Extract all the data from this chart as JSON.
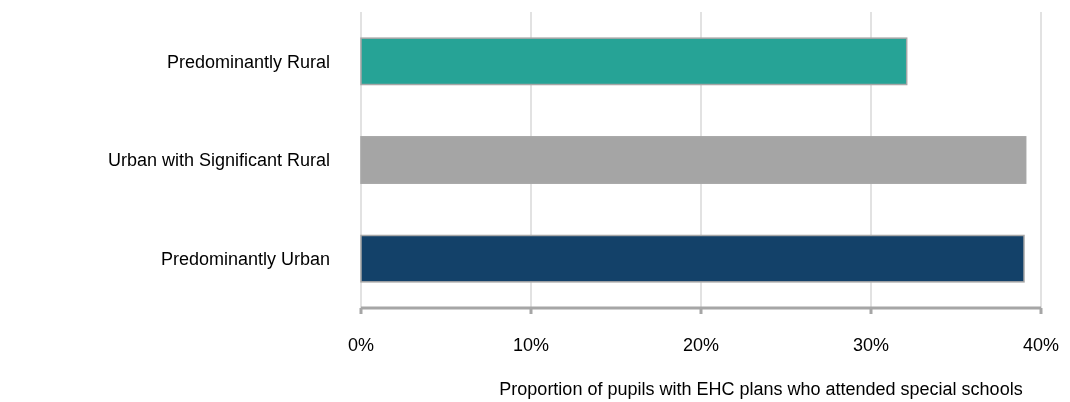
{
  "chart_data": {
    "type": "bar",
    "orientation": "horizontal",
    "categories": [
      "Predominantly Rural",
      "Urban with Significant Rural",
      "Predominantly Urban"
    ],
    "values": [
      32.1,
      39.1,
      39.0
    ],
    "colors": [
      "#26a396",
      "#a5a5a5",
      "#134169"
    ],
    "xlabel": "Proportion of pupils with EHC plans who attended special schools",
    "xlim": [
      0,
      40
    ],
    "xticks": [
      {
        "value": 0,
        "label": "0%"
      },
      {
        "value": 10,
        "label": "10%"
      },
      {
        "value": 20,
        "label": "20%"
      },
      {
        "value": 30,
        "label": "30%"
      },
      {
        "value": 40,
        "label": "40%"
      }
    ],
    "grid": "x"
  }
}
